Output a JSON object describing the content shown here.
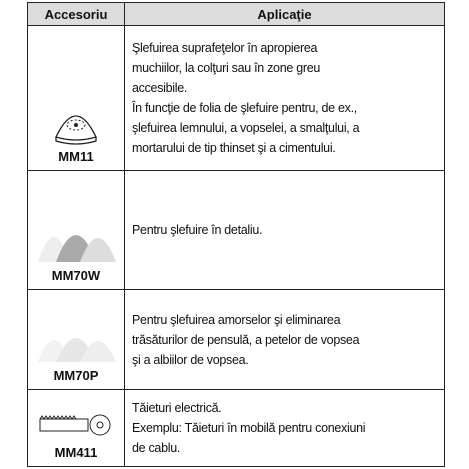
{
  "table": {
    "header": [
      "Accesoriu",
      "Aplicaţie"
    ],
    "rows": [
      {
        "accessory": "MM11",
        "application": [
          "Şlefuirea suprafeţelor în apropierea",
          "muchiilor, la colţuri sau în zone greu",
          "accesibile.",
          "În funcţie de folia de şlefuire pentru, de ex.,",
          "şlefuirea lemnului, a vopselei, a smalţului, a",
          "mortarului de tip thinset şi a cimentului."
        ]
      },
      {
        "accessory": "MM70W",
        "application": [
          "Pentru şlefuire în detaliu."
        ]
      },
      {
        "accessory": "MM70P",
        "application": [
          "Pentru şlefuirea amorselor şi eliminarea",
          "trăsăturilor de pensulă, a petelor de vopsea",
          "şi a albiilor de vopsea."
        ]
      },
      {
        "accessory": "MM411",
        "application": [
          "Tăieturi electrică.",
          "Exemplu: Tăieturi în mobilă pentru conexiuni",
          "de cablu."
        ]
      }
    ]
  }
}
